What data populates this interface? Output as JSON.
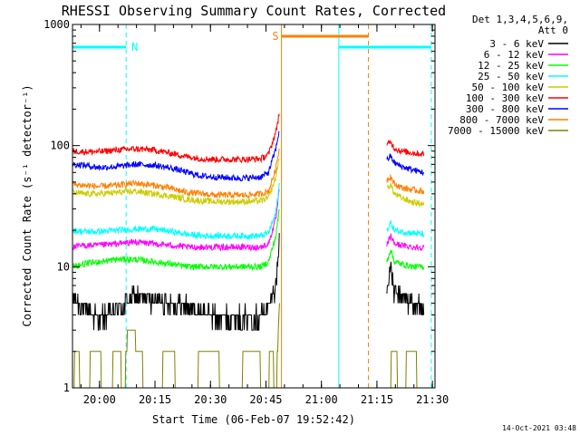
{
  "chart_data": {
    "type": "line",
    "title": "RHESSI Observing Summary Count Rates, Corrected",
    "xlabel": "Start Time (06-Feb-07 19:52:42)",
    "ylabel": "Corrected Count Rate (s⁻¹ detector⁻¹)",
    "yscale": "log",
    "ylim": [
      1,
      1000
    ],
    "y_ticks": [
      1,
      10,
      100,
      1000
    ],
    "y_tick_labels": [
      "1",
      "10",
      "100",
      "1000"
    ],
    "xlim_minutes": [
      0,
      98
    ],
    "x_tick_minutes": [
      7.3,
      22.3,
      37.3,
      52.3,
      67.3,
      82.3,
      97.3
    ],
    "x_tick_labels": [
      "20:00",
      "20:15",
      "20:30",
      "20:45",
      "21:00",
      "21:15",
      "21:30"
    ],
    "legend_header": [
      "Det 1,3,4,5,6,9,",
      "Att 0"
    ],
    "legend_position": "right",
    "series": [
      {
        "name": "3 - 6 keV",
        "color": "#000000",
        "x": [
          0,
          3,
          7,
          12,
          17,
          22,
          27,
          31,
          35,
          39,
          43,
          47,
          51,
          53,
          55,
          56
        ],
        "y": [
          5.5,
          4.5,
          3.8,
          4.3,
          5.8,
          5.3,
          5,
          4.8,
          4.2,
          3.8,
          3.8,
          3.8,
          3.9,
          4.5,
          7,
          18
        ],
        "x2": [
          85,
          86,
          87,
          89,
          92,
          95
        ],
        "y2": [
          6.5,
          10,
          6,
          5.5,
          5,
          4.5
        ]
      },
      {
        "name": "6 - 12 keV",
        "color": "#ff00ff",
        "x": [
          0,
          3,
          7,
          12,
          17,
          22,
          27,
          31,
          35,
          39,
          43,
          47,
          51,
          53,
          55,
          56
        ],
        "y": [
          14.5,
          15,
          15,
          15.5,
          16,
          15.5,
          15,
          14.5,
          14.5,
          14.5,
          14.5,
          14.5,
          14.5,
          15.5,
          25,
          45
        ],
        "x2": [
          85,
          86,
          87,
          89,
          92,
          95
        ],
        "y2": [
          15,
          18,
          15.5,
          15,
          14.5,
          14.5
        ]
      },
      {
        "name": "12 - 25 keV",
        "color": "#00ff00",
        "x": [
          0,
          3,
          7,
          12,
          17,
          22,
          27,
          31,
          35,
          39,
          43,
          47,
          51,
          53,
          55,
          56
        ],
        "y": [
          10,
          10.5,
          11,
          11.5,
          11.5,
          11,
          10.5,
          10,
          10,
          10,
          10,
          10,
          10,
          11,
          18,
          32
        ],
        "x2": [
          85,
          86,
          87,
          89,
          92,
          95
        ],
        "y2": [
          11,
          14,
          11,
          10.5,
          10,
          10
        ]
      },
      {
        "name": "25 - 50 keV",
        "color": "#00ffff",
        "x": [
          0,
          3,
          7,
          12,
          17,
          22,
          27,
          31,
          35,
          39,
          43,
          47,
          51,
          53,
          55,
          56
        ],
        "y": [
          20,
          19.5,
          19.5,
          20,
          20.5,
          20.5,
          19.5,
          18.5,
          18,
          18,
          18,
          18,
          18,
          19,
          28,
          50
        ],
        "x2": [
          85,
          86,
          87,
          89,
          92,
          95
        ],
        "y2": [
          20,
          23,
          20,
          19.5,
          19,
          18.5
        ]
      },
      {
        "name": "50 - 100 keV",
        "color": "#cccc00",
        "x": [
          0,
          3,
          7,
          12,
          17,
          22,
          27,
          31,
          35,
          39,
          43,
          47,
          51,
          53,
          55,
          56
        ],
        "y": [
          41,
          40,
          40,
          41,
          42,
          40,
          38,
          36,
          35,
          34.5,
          34.5,
          34.5,
          35,
          37,
          55,
          85
        ],
        "x2": [
          85,
          86,
          87,
          89,
          92,
          95
        ],
        "y2": [
          44,
          48,
          40,
          37,
          34,
          33
        ]
      },
      {
        "name": "100 - 300 keV",
        "color": "#ff0000",
        "x": [
          0,
          3,
          7,
          12,
          17,
          22,
          27,
          31,
          35,
          39,
          43,
          47,
          51,
          53,
          55,
          56
        ],
        "y": [
          90,
          89,
          89,
          92,
          94,
          92,
          86,
          81,
          78,
          77,
          77,
          77,
          78,
          85,
          130,
          195
        ],
        "x2": [
          85,
          86,
          87,
          89,
          92,
          95
        ],
        "y2": [
          100,
          108,
          95,
          90,
          87,
          85
        ]
      },
      {
        "name": "300 - 800 keV",
        "color": "#0000ff",
        "x": [
          0,
          3,
          7,
          12,
          17,
          22,
          27,
          31,
          35,
          39,
          43,
          47,
          51,
          53,
          55,
          56
        ],
        "y": [
          70,
          69,
          66,
          67,
          70,
          69,
          65,
          60,
          56,
          55,
          54,
          54,
          55,
          60,
          95,
          140
        ],
        "x2": [
          85,
          86,
          87,
          89,
          92,
          95
        ],
        "y2": [
          76,
          82,
          72,
          67,
          63,
          60
        ]
      },
      {
        "name": "800 - 7000 keV",
        "color": "#ff8000",
        "x": [
          0,
          3,
          7,
          12,
          17,
          22,
          27,
          31,
          35,
          39,
          43,
          47,
          51,
          53,
          55,
          56
        ],
        "y": [
          48,
          47,
          46,
          47,
          49,
          47,
          44,
          41,
          40,
          39,
          39,
          39,
          40,
          42,
          65,
          100
        ],
        "x2": [
          85,
          86,
          87,
          89,
          92,
          95
        ],
        "y2": [
          52,
          56,
          48,
          45,
          43,
          42
        ]
      },
      {
        "name": "7000 - 15000 keV",
        "color": "#808000",
        "x": [
          0,
          1,
          3,
          6,
          10,
          12,
          14,
          15,
          17,
          19,
          22,
          26,
          30,
          34,
          38,
          42,
          46,
          50,
          52,
          54,
          55,
          56
        ],
        "y": [
          1,
          2,
          1,
          2,
          1,
          2.5,
          1,
          3,
          2.5,
          1.5,
          1,
          2,
          1,
          1.5,
          2,
          1,
          1.5,
          2,
          1,
          2,
          1,
          5
        ],
        "x2": [
          85,
          87,
          89,
          91,
          93,
          95
        ],
        "y2": [
          1,
          2,
          1,
          2,
          1.5,
          1
        ]
      }
    ],
    "annotations": {
      "N": {
        "label": "N",
        "color": "#00ffff",
        "level": 650,
        "x_start": 0,
        "x_end": 14.5
      },
      "S": {
        "label": "S",
        "color": "#ff8000",
        "level": 800,
        "x_start": 56.5,
        "x_end": 80
      },
      "night2": {
        "color": "#00ffff",
        "level": 650,
        "x_start": 72,
        "x_end": 97
      }
    },
    "vertical_lines": [
      {
        "x": 0,
        "color": "#00ffff",
        "style": "solid"
      },
      {
        "x": 14.5,
        "color": "#00ffff",
        "style": "dashed"
      },
      {
        "x": 56.5,
        "color": "#ff8000",
        "style": "solid"
      },
      {
        "x": 72,
        "color": "#00ffff",
        "style": "solid"
      },
      {
        "x": 80,
        "color": "#ff8000",
        "style": "dashed"
      },
      {
        "x": 97,
        "color": "#00ffff",
        "style": "dashed"
      }
    ],
    "data_gap_minutes": [
      56.5,
      85
    ]
  },
  "footer": {
    "timestamp": "14-Oct-2021 03:48"
  }
}
